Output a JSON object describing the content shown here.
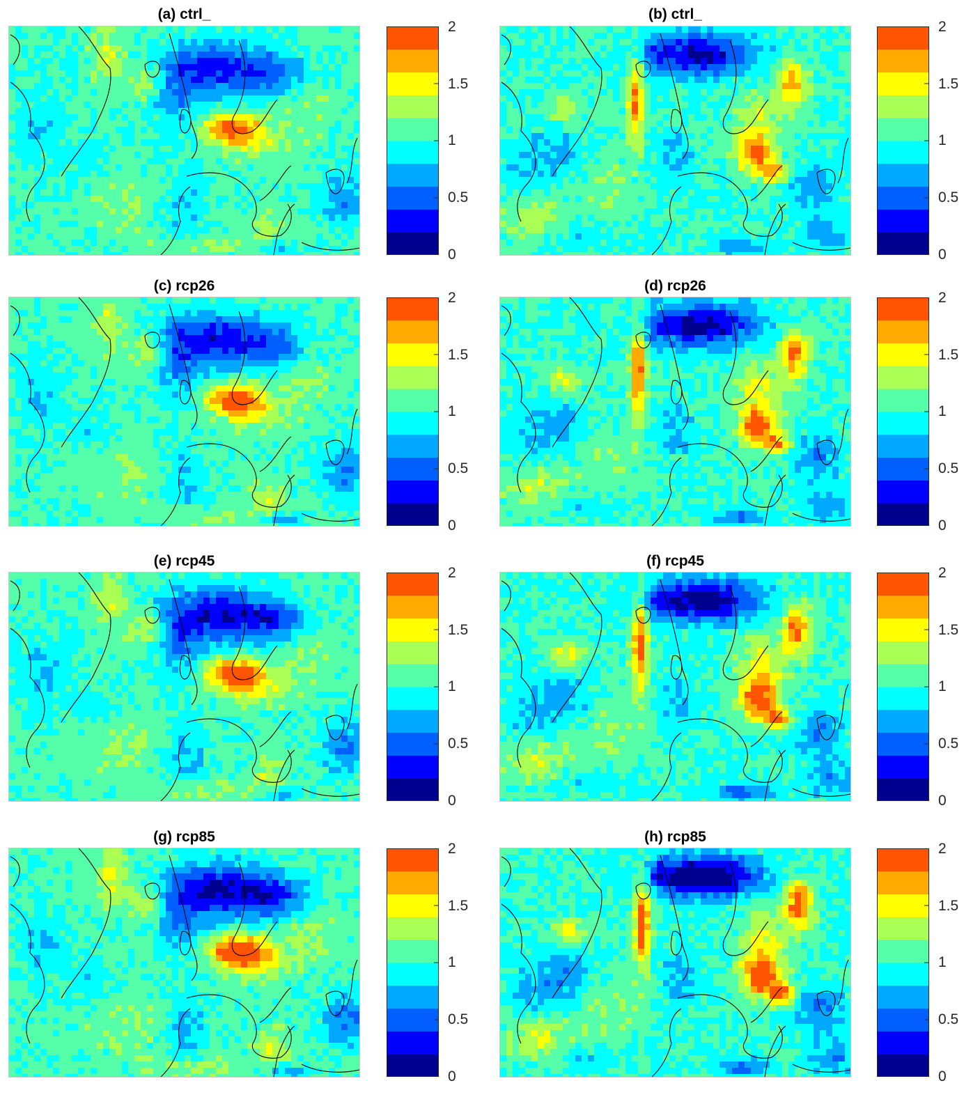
{
  "colorbar": {
    "ticks": [
      "0",
      "0.5",
      "1",
      "1.5",
      "2"
    ],
    "levels": [
      0,
      2
    ],
    "colors": [
      "#00008f",
      "#0000ff",
      "#0060ff",
      "#00a8ff",
      "#00ffff",
      "#55ffaa",
      "#aaff55",
      "#ffff00",
      "#ffaa00",
      "#ff5500"
    ]
  },
  "panels": [
    {
      "id": "a",
      "title": "(a) ctrl_",
      "variant": "left"
    },
    {
      "id": "b",
      "title": "(b) ctrl_",
      "variant": "right"
    },
    {
      "id": "c",
      "title": "(c) rcp26",
      "variant": "left"
    },
    {
      "id": "d",
      "title": "(d) rcp26",
      "variant": "right"
    },
    {
      "id": "e",
      "title": "(e) rcp45",
      "variant": "left"
    },
    {
      "id": "f",
      "title": "(f) rcp45",
      "variant": "right"
    },
    {
      "id": "g",
      "title": "(g) rcp85",
      "variant": "left"
    },
    {
      "id": "h",
      "title": "(h) rcp85",
      "variant": "right"
    }
  ]
}
